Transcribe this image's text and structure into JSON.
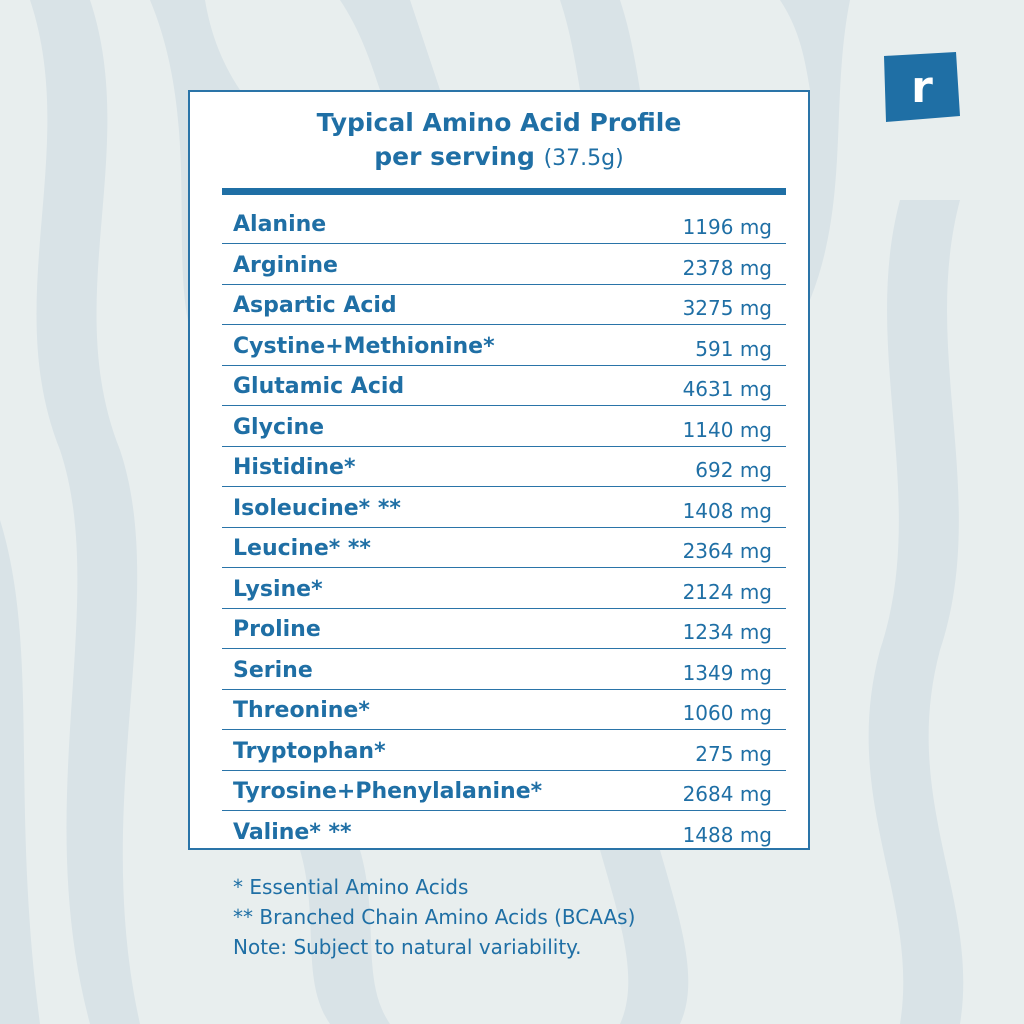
{
  "title_line1": "Typical Amino Acid Profile",
  "title_line2_bold": "per serving",
  "title_line2_light": "(37.5g)",
  "logo_letter": "r",
  "colors": {
    "brand_blue": "#1f6fa5",
    "background": "#e8eeee",
    "stripes": "#d6e0e4"
  },
  "rows": [
    {
      "name": "Alanine",
      "amount": "1196 mg"
    },
    {
      "name": "Arginine",
      "amount": "2378 mg"
    },
    {
      "name": "Aspartic Acid",
      "amount": "3275 mg"
    },
    {
      "name": "Cystine+Methionine*",
      "amount": "591 mg"
    },
    {
      "name": "Glutamic Acid",
      "amount": "4631 mg"
    },
    {
      "name": "Glycine",
      "amount": "1140 mg"
    },
    {
      "name": "Histidine*",
      "amount": "692 mg"
    },
    {
      "name": "Isoleucine* **",
      "amount": "1408 mg"
    },
    {
      "name": "Leucine* **",
      "amount": "2364 mg"
    },
    {
      "name": "Lysine*",
      "amount": "2124 mg"
    },
    {
      "name": "Proline",
      "amount": "1234 mg"
    },
    {
      "name": "Serine",
      "amount": "1349 mg"
    },
    {
      "name": "Threonine*",
      "amount": "1060 mg"
    },
    {
      "name": "Tryptophan*",
      "amount": "275 mg"
    },
    {
      "name": "Tyrosine+Phenylalanine*",
      "amount": "2684 mg"
    },
    {
      "name": "Valine* **",
      "amount": "1488 mg"
    }
  ],
  "notes": [
    "* Essential Amino Acids",
    "** Branched Chain Amino Acids (BCAAs)",
    "Note: Subject to natural variability."
  ]
}
